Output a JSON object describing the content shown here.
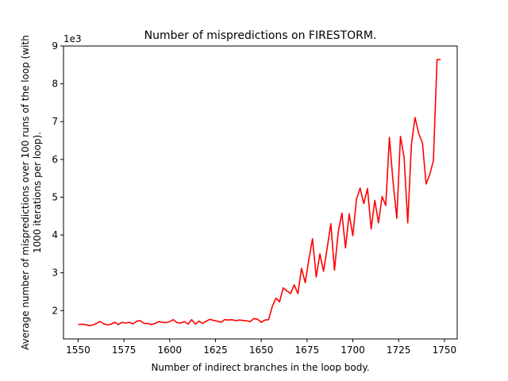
{
  "chart_data": {
    "type": "line",
    "title": "Number of mispredictions on FIRESTORM.",
    "xlabel": "Number of indirect branches in the loop body.",
    "ylabel_lines": [
      "Average number of mispredictions over 100 runs of the loop (with",
      "1000 iterations per loop)."
    ],
    "offset_text": "1e3",
    "xlim": [
      1542,
      1757
    ],
    "ylim": [
      1.25,
      9.0
    ],
    "x_ticks": [
      1550,
      1575,
      1600,
      1625,
      1650,
      1675,
      1700,
      1725,
      1750
    ],
    "x_tick_labels": [
      "1550",
      "1575",
      "1600",
      "1625",
      "1650",
      "1675",
      "1700",
      "1725",
      "1750"
    ],
    "y_ticks": [
      2,
      3,
      4,
      5,
      6,
      7,
      8,
      9
    ],
    "y_tick_labels": [
      "2",
      "3",
      "4",
      "5",
      "6",
      "7",
      "8",
      "9"
    ],
    "grid": false,
    "series": [
      {
        "color": "#ff0000",
        "x": [
          1550,
          1552,
          1554,
          1556,
          1558,
          1560,
          1562,
          1564,
          1566,
          1568,
          1570,
          1572,
          1574,
          1576,
          1578,
          1580,
          1582,
          1584,
          1586,
          1588,
          1590,
          1592,
          1594,
          1596,
          1598,
          1600,
          1602,
          1604,
          1606,
          1608,
          1610,
          1612,
          1614,
          1616,
          1618,
          1620,
          1622,
          1624,
          1626,
          1628,
          1630,
          1632,
          1634,
          1636,
          1638,
          1640,
          1642,
          1644,
          1646,
          1648,
          1650,
          1652,
          1654,
          1656,
          1658,
          1660,
          1662,
          1664,
          1666,
          1668,
          1670,
          1672,
          1674,
          1676,
          1678,
          1680,
          1682,
          1684,
          1686,
          1688,
          1690,
          1692,
          1694,
          1696,
          1698,
          1700,
          1702,
          1704,
          1706,
          1708,
          1710,
          1712,
          1714,
          1716,
          1718,
          1720,
          1722,
          1724,
          1726,
          1728,
          1730,
          1732,
          1734,
          1736,
          1738,
          1740,
          1742,
          1744,
          1746,
          1748
        ],
        "y": [
          1.63,
          1.64,
          1.63,
          1.6,
          1.62,
          1.66,
          1.71,
          1.65,
          1.62,
          1.64,
          1.69,
          1.63,
          1.69,
          1.67,
          1.69,
          1.65,
          1.72,
          1.73,
          1.66,
          1.66,
          1.63,
          1.66,
          1.71,
          1.69,
          1.68,
          1.71,
          1.76,
          1.68,
          1.67,
          1.71,
          1.64,
          1.76,
          1.64,
          1.72,
          1.66,
          1.72,
          1.77,
          1.74,
          1.72,
          1.69,
          1.76,
          1.75,
          1.76,
          1.73,
          1.75,
          1.74,
          1.73,
          1.71,
          1.79,
          1.77,
          1.69,
          1.75,
          1.76,
          2.11,
          2.33,
          2.23,
          2.6,
          2.52,
          2.45,
          2.68,
          2.45,
          3.12,
          2.74,
          3.35,
          3.9,
          2.89,
          3.5,
          3.04,
          3.66,
          4.3,
          3.07,
          4.06,
          4.58,
          3.66,
          4.56,
          3.98,
          4.95,
          5.24,
          4.83,
          5.23,
          4.16,
          4.92,
          4.32,
          5.02,
          4.78,
          6.58,
          5.38,
          4.44,
          6.61,
          6.05,
          4.32,
          6.39,
          7.11,
          6.68,
          6.44,
          5.35,
          5.6,
          5.96,
          8.64,
          8.64
        ]
      }
    ]
  }
}
